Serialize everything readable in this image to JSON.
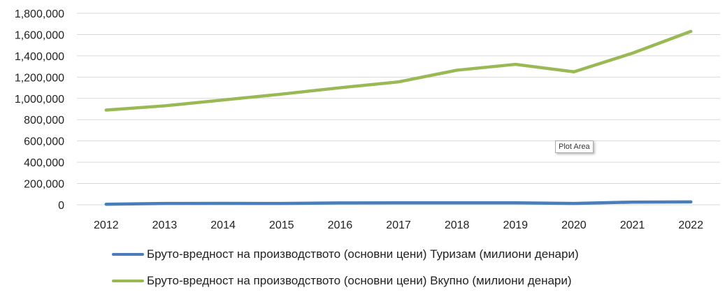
{
  "tooltip": "Plot Area",
  "chart_data": {
    "type": "line",
    "categories": [
      "2012",
      "2013",
      "2014",
      "2015",
      "2016",
      "2017",
      "2018",
      "2019",
      "2020",
      "2021",
      "2022"
    ],
    "ylim": [
      0,
      1800000
    ],
    "yticks": [
      "0",
      "200,000",
      "400,000",
      "600,000",
      "800,000",
      "1,000,000",
      "1,200,000",
      "1,400,000",
      "1,600,000",
      "1,800,000"
    ],
    "grid": true,
    "legend_position": "bottom",
    "series": [
      {
        "name": "Бруто-вредност на производството (основни цени) Туризам (милиони денари)",
        "color": "#4a7ebb",
        "values": [
          5000,
          12000,
          13000,
          12000,
          17000,
          18000,
          18000,
          18000,
          12000,
          25000,
          27000
        ]
      },
      {
        "name": "Бруто-вредност на производството (основни цени) Вкупно (милиони денари)",
        "color": "#98b954",
        "values": [
          890000,
          930000,
          985000,
          1040000,
          1100000,
          1155000,
          1265000,
          1320000,
          1250000,
          1425000,
          1630000
        ]
      }
    ]
  }
}
